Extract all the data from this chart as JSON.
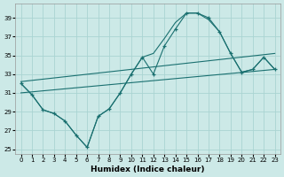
{
  "xlabel": "Humidex (Indice chaleur)",
  "background_color": "#cce9e7",
  "grid_color": "#aad4d2",
  "line_color": "#1a7070",
  "xlim": [
    -0.5,
    23.5
  ],
  "ylim": [
    24.5,
    40.5
  ],
  "yticks": [
    25,
    27,
    29,
    31,
    33,
    35,
    37,
    39
  ],
  "xticks": [
    0,
    1,
    2,
    3,
    4,
    5,
    6,
    7,
    8,
    9,
    10,
    11,
    12,
    13,
    14,
    15,
    16,
    17,
    18,
    19,
    20,
    21,
    22,
    23
  ],
  "series_jagged": {
    "x": [
      0,
      1,
      2,
      3,
      4,
      5,
      6,
      7,
      8,
      9,
      10,
      11,
      12,
      13,
      14,
      15,
      16,
      17,
      18,
      19,
      20,
      21,
      22,
      23
    ],
    "y": [
      32.0,
      30.8,
      29.2,
      28.8,
      28.0,
      26.5,
      25.2,
      28.5,
      29.3,
      31.0,
      33.0,
      34.8,
      33.0,
      36.0,
      37.8,
      39.5,
      39.5,
      39.0,
      37.5,
      35.2,
      33.2,
      33.5,
      34.8,
      33.5
    ]
  },
  "series_smooth": {
    "x": [
      0,
      1,
      2,
      3,
      4,
      5,
      6,
      7,
      8,
      9,
      10,
      11,
      12,
      13,
      14,
      15,
      16,
      17,
      18,
      19,
      20,
      21,
      22,
      23
    ],
    "y": [
      32.0,
      30.8,
      29.2,
      28.8,
      28.0,
      26.5,
      25.2,
      28.5,
      29.3,
      31.0,
      33.0,
      34.8,
      35.2,
      36.8,
      38.5,
      39.5,
      39.5,
      38.8,
      37.5,
      35.2,
      33.2,
      33.5,
      34.8,
      33.5
    ]
  },
  "line_upper": {
    "x": [
      0,
      23
    ],
    "y": [
      32.2,
      35.2
    ]
  },
  "line_lower": {
    "x": [
      0,
      23
    ],
    "y": [
      31.0,
      33.5
    ]
  }
}
